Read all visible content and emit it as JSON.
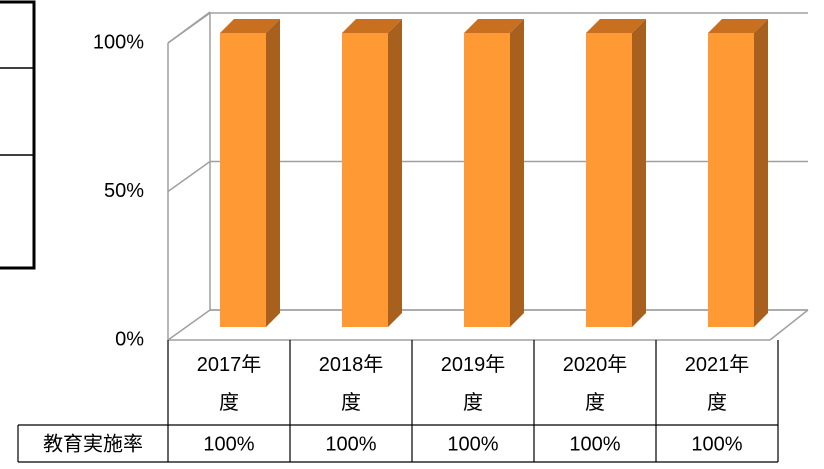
{
  "chart_data": {
    "type": "bar3d",
    "categories": [
      "2017年度",
      "2018年度",
      "2019年度",
      "2020年度",
      "2021年度"
    ],
    "table_row_label": "教育実施率",
    "values": [
      100,
      100,
      100,
      100,
      100
    ],
    "value_labels": [
      "100%",
      "100%",
      "100%",
      "100%",
      "100%"
    ],
    "color": "#ff9933",
    "ylim": [
      0,
      100
    ],
    "yticks": [
      {
        "value": 0,
        "label": "0%"
      },
      {
        "value": 50,
        "label": "50%"
      },
      {
        "value": 100,
        "label": "100%"
      }
    ],
    "grid": true
  }
}
